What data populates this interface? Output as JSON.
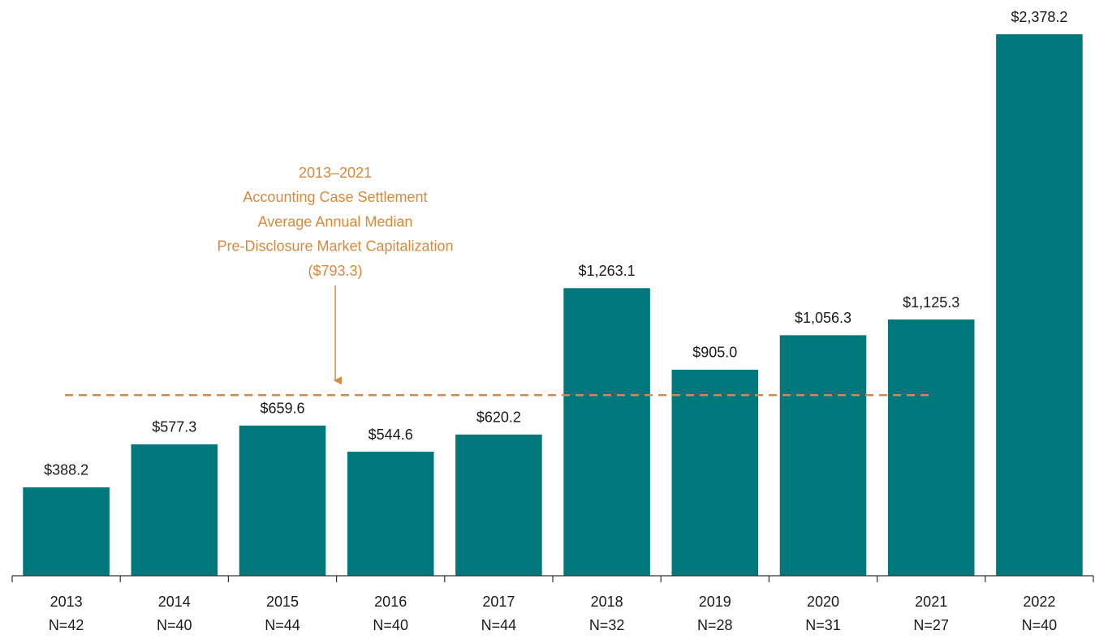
{
  "chart_data": {
    "type": "bar",
    "categories": [
      "2013",
      "2014",
      "2015",
      "2016",
      "2017",
      "2018",
      "2019",
      "2020",
      "2021",
      "2022"
    ],
    "sample_sizes": [
      "N=42",
      "N=40",
      "N=44",
      "N=40",
      "N=44",
      "N=32",
      "N=28",
      "N=31",
      "N=27",
      "N=40"
    ],
    "values": [
      388.2,
      577.3,
      659.6,
      544.6,
      620.2,
      1263.1,
      905.0,
      1056.3,
      1125.3,
      2378.2
    ],
    "value_labels": [
      "$388.2",
      "$577.3",
      "$659.6",
      "$544.6",
      "$620.2",
      "$1,263.1",
      "$905.0",
      "$1,056.3",
      "$1,125.3",
      "$2,378.2"
    ],
    "color": "#00777b",
    "ylim": [
      0,
      2500
    ],
    "reference_line": {
      "value": 793.3,
      "label": "($793.3)",
      "color": "#d8893d"
    },
    "annotation": [
      "2013–2021",
      "Accounting Case Settlement",
      "Average Annual Median",
      "Pre-Disclosure Market Capitalization"
    ]
  }
}
